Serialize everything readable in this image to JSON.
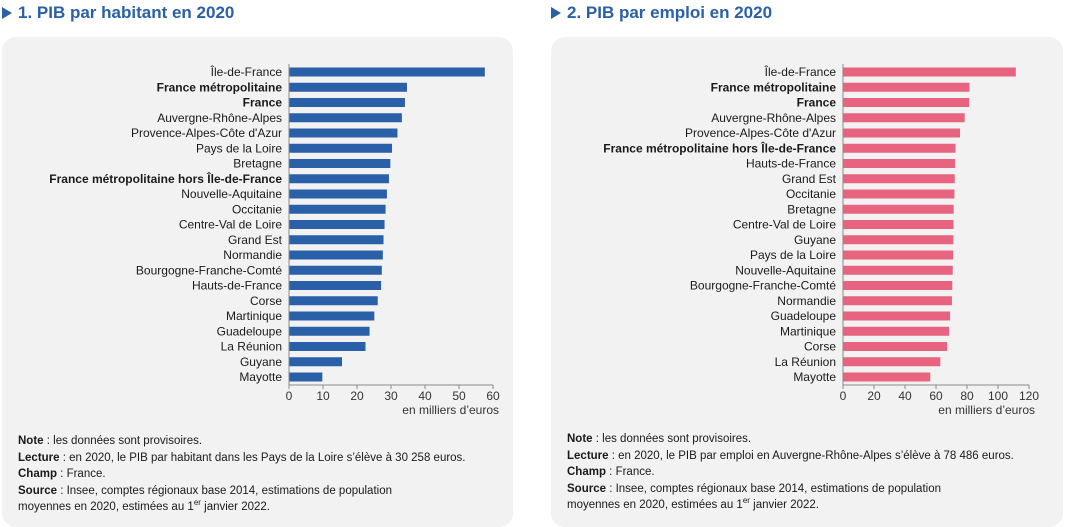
{
  "panels": [
    {
      "title": "1. PIB par habitant en 2020",
      "notes": {
        "note_label": "Note",
        "note_text": " : les données sont provisoires.",
        "lecture_label": "Lecture",
        "lecture_text": " : en 2020, le PIB par habitant dans les Pays de la Loire s’élève à 30 258 euros.",
        "champ_label": "Champ",
        "champ_text": " : France.",
        "source_label": "Source",
        "source_text_1": " : Insee, comptes régionaux base 2014, estimations de population",
        "source_text_2a": "moyennes en 2020, estimées au 1",
        "source_sup": "er",
        "source_text_2b": " janvier 2022."
      }
    },
    {
      "title": "2. PIB par emploi en 2020",
      "notes": {
        "note_label": "Note",
        "note_text": " : les données sont provisoires.",
        "lecture_label": "Lecture",
        "lecture_text": " : en 2020, le PIB par emploi en Auvergne-Rhône-Alpes s’élève à 78 486 euros.",
        "champ_label": "Champ",
        "champ_text": " : France.",
        "source_label": "Source",
        "source_text_1": " : Insee, comptes régionaux base 2014, estimations de population",
        "source_text_2a": "moyennes en 2020, estimées au 1",
        "source_sup": "er",
        "source_text_2b": " janvier 2022."
      }
    }
  ],
  "colors": {
    "title": "#2a60a8",
    "bar_left": "#2a60a8",
    "bar_right": "#e8637f",
    "card": "#f2f2f2"
  },
  "chart_data": [
    {
      "type": "bar",
      "orientation": "horizontal",
      "title": "1. PIB par habitant en 2020",
      "xlabel": "en milliers d’euros",
      "xlim": [
        0,
        60
      ],
      "xticks": [
        0,
        10,
        20,
        30,
        40,
        50,
        60
      ],
      "grid": false,
      "categories": [
        "Île-de-France",
        "France métropolitaine",
        "France",
        "Auvergne-Rhône-Alpes",
        "Provence-Alpes-Côte d'Azur",
        "Pays de la Loire",
        "Bretagne",
        "France métropolitaine hors Île-de-France",
        "Nouvelle-Aquitaine",
        "Occitanie",
        "Centre-Val de Loire",
        "Grand Est",
        "Normandie",
        "Bourgogne-Franche-Comté",
        "Hauts-de-France",
        "Corse",
        "Martinique",
        "Guadeloupe",
        "La Réunion",
        "Guyane",
        "Mayotte"
      ],
      "bold_categories": [
        "France métropolitaine",
        "France",
        "France métropolitaine hors Île-de-France"
      ],
      "values": [
        57.6,
        34.7,
        34.1,
        33.2,
        31.9,
        30.3,
        29.8,
        29.4,
        28.8,
        28.4,
        28.1,
        27.8,
        27.6,
        27.3,
        27.1,
        26.1,
        25.1,
        23.7,
        22.5,
        15.6,
        9.8
      ],
      "color": "#2a60a8"
    },
    {
      "type": "bar",
      "orientation": "horizontal",
      "title": "2. PIB par emploi en 2020",
      "xlabel": "en milliers d’euros",
      "xlim": [
        0,
        120
      ],
      "xticks": [
        0,
        20,
        40,
        60,
        80,
        100,
        120
      ],
      "grid": false,
      "categories": [
        "Île-de-France",
        "France métropolitaine",
        "France",
        "Auvergne-Rhône-Alpes",
        "Provence-Alpes-Côte d'Azur",
        "France métropolitaine hors Île-de-France",
        "Hauts-de-France",
        "Grand Est",
        "Occitanie",
        "Bretagne",
        "Centre-Val de Loire",
        "Guyane",
        "Pays de la Loire",
        "Nouvelle-Aquitaine",
        "Bourgogne-Franche-Comté",
        "Normandie",
        "Guadeloupe",
        "Martinique",
        "Corse",
        "La Réunion",
        "Mayotte"
      ],
      "bold_categories": [
        "France métropolitaine",
        "France",
        "France métropolitaine hors Île-de-France"
      ],
      "values": [
        111.5,
        81.6,
        81.4,
        78.5,
        75.5,
        72.6,
        72.3,
        72.1,
        71.9,
        71.4,
        71.3,
        71.2,
        71.1,
        70.8,
        70.5,
        70.3,
        69.1,
        68.4,
        67.2,
        62.8,
        56.3
      ],
      "color": "#e8637f"
    }
  ]
}
